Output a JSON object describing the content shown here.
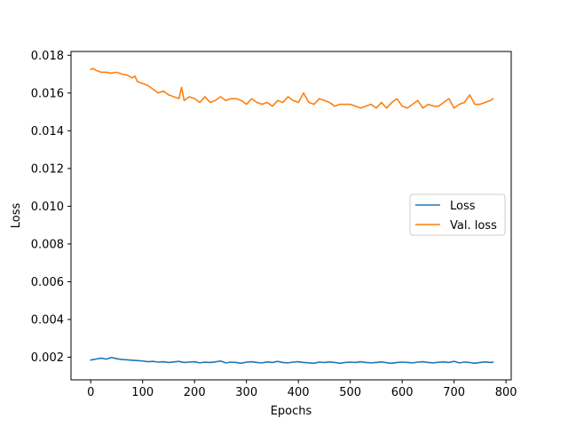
{
  "chart_data": {
    "type": "line",
    "xlabel": "Epochs",
    "ylabel": "Loss",
    "xlim": [
      -38,
      810
    ],
    "ylim": [
      0.0008,
      0.0182
    ],
    "xticks": [
      0,
      100,
      200,
      300,
      400,
      500,
      600,
      700,
      800
    ],
    "yticks": [
      0.002,
      0.004,
      0.006,
      0.008,
      0.01,
      0.012,
      0.014,
      0.016,
      0.018
    ],
    "ytick_labels": [
      "0.002",
      "0.004",
      "0.006",
      "0.008",
      "0.010",
      "0.012",
      "0.014",
      "0.016",
      "0.018"
    ],
    "grid": false,
    "legend_position": "center-right",
    "series": [
      {
        "name": "Loss",
        "color": "#1f77b4",
        "x": [
          0,
          10,
          20,
          30,
          40,
          50,
          60,
          70,
          80,
          90,
          100,
          110,
          120,
          130,
          140,
          150,
          160,
          170,
          180,
          190,
          200,
          210,
          220,
          230,
          240,
          250,
          260,
          270,
          280,
          290,
          300,
          310,
          320,
          330,
          340,
          350,
          360,
          370,
          380,
          390,
          400,
          410,
          420,
          430,
          440,
          450,
          460,
          470,
          480,
          490,
          500,
          510,
          520,
          530,
          540,
          550,
          560,
          570,
          580,
          590,
          600,
          610,
          620,
          630,
          640,
          650,
          660,
          670,
          680,
          690,
          700,
          710,
          720,
          730,
          740,
          750,
          760,
          770,
          775
        ],
        "y": [
          0.00185,
          0.0019,
          0.00195,
          0.0019,
          0.00198,
          0.00192,
          0.00188,
          0.00186,
          0.00184,
          0.00182,
          0.0018,
          0.00176,
          0.00178,
          0.00174,
          0.00176,
          0.00172,
          0.00175,
          0.00178,
          0.00172,
          0.00174,
          0.00176,
          0.0017,
          0.00174,
          0.00172,
          0.00175,
          0.0018,
          0.0017,
          0.00174,
          0.00172,
          0.00168,
          0.00174,
          0.00176,
          0.00172,
          0.0017,
          0.00175,
          0.00172,
          0.00178,
          0.00172,
          0.0017,
          0.00174,
          0.00176,
          0.00172,
          0.0017,
          0.00168,
          0.00174,
          0.00172,
          0.00175,
          0.00172,
          0.00168,
          0.00172,
          0.00174,
          0.00172,
          0.00176,
          0.00172,
          0.0017,
          0.00172,
          0.00175,
          0.00171,
          0.00168,
          0.00172,
          0.00174,
          0.00172,
          0.0017,
          0.00174,
          0.00176,
          0.00172,
          0.0017,
          0.00173,
          0.00175,
          0.00172,
          0.00178,
          0.0017,
          0.00174,
          0.00172,
          0.00168,
          0.00172,
          0.00175,
          0.00172,
          0.00174
        ]
      },
      {
        "name": "Val. loss",
        "color": "#ff7f0e",
        "x": [
          0,
          5,
          10,
          20,
          30,
          40,
          50,
          60,
          70,
          80,
          85,
          90,
          100,
          110,
          115,
          120,
          130,
          140,
          150,
          160,
          170,
          175,
          180,
          190,
          200,
          210,
          220,
          230,
          240,
          250,
          260,
          270,
          280,
          290,
          300,
          310,
          320,
          330,
          340,
          350,
          360,
          370,
          380,
          390,
          400,
          410,
          420,
          430,
          440,
          450,
          460,
          470,
          480,
          490,
          500,
          510,
          520,
          530,
          540,
          550,
          560,
          570,
          580,
          590,
          600,
          610,
          620,
          630,
          640,
          650,
          660,
          670,
          680,
          690,
          700,
          710,
          720,
          730,
          740,
          750,
          760,
          770,
          775
        ],
        "y": [
          0.01725,
          0.0173,
          0.0172,
          0.0171,
          0.0171,
          0.01705,
          0.0171,
          0.017,
          0.01695,
          0.0168,
          0.0169,
          0.0166,
          0.0165,
          0.0164,
          0.0163,
          0.0162,
          0.016,
          0.0161,
          0.0159,
          0.0158,
          0.0157,
          0.0163,
          0.0156,
          0.0158,
          0.0157,
          0.0155,
          0.0158,
          0.0155,
          0.0156,
          0.0158,
          0.0156,
          0.0157,
          0.0157,
          0.0156,
          0.0154,
          0.0157,
          0.0155,
          0.0154,
          0.0155,
          0.0153,
          0.0156,
          0.0155,
          0.0158,
          0.0156,
          0.0155,
          0.016,
          0.0155,
          0.0154,
          0.0157,
          0.0156,
          0.0155,
          0.0153,
          0.0154,
          0.0154,
          0.0154,
          0.0153,
          0.0152,
          0.0153,
          0.0154,
          0.0152,
          0.0155,
          0.0152,
          0.0155,
          0.0157,
          0.0153,
          0.0152,
          0.0154,
          0.0156,
          0.0152,
          0.0154,
          0.0153,
          0.0153,
          0.0155,
          0.0157,
          0.0152,
          0.0154,
          0.0155,
          0.0159,
          0.0154,
          0.0154,
          0.0155,
          0.0156,
          0.0157
        ]
      }
    ]
  }
}
